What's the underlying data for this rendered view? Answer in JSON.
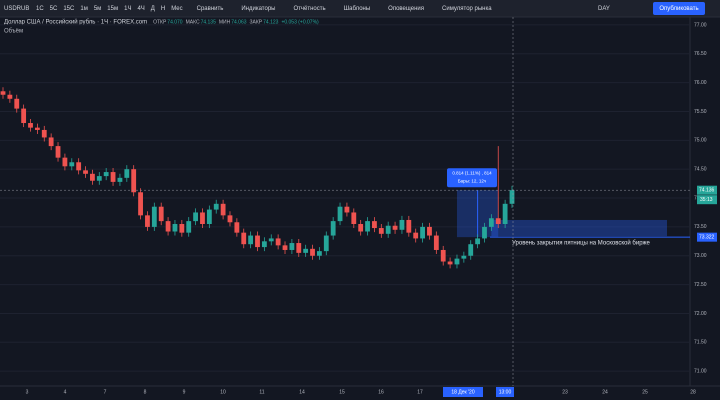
{
  "toolbar": {
    "symbol": "USDRUB",
    "intervals": [
      "1С",
      "5С",
      "15С",
      "1м",
      "5м",
      "15м",
      "1Ч",
      "4Ч",
      "Д",
      "Н",
      "Мес"
    ],
    "buttons": [
      "Сравнить",
      "Индикаторы",
      "Отчётность",
      "Шаблоны",
      "Оповещения",
      "Симулятор рынка"
    ],
    "chart_mode": "DAY",
    "publish": "Опубликовать"
  },
  "legend": {
    "title": "Доллар США / Российский рубль · 1Ч · FOREX.com",
    "ohlc": [
      {
        "label": "ОТКР",
        "value": "74.070"
      },
      {
        "label": "МАКС",
        "value": "74.135"
      },
      {
        "label": "МИН",
        "value": "74.063"
      },
      {
        "label": "ЗАКР",
        "value": "74.123"
      }
    ],
    "change": "+0.053 (+0.07%)",
    "volume": "Объём"
  },
  "chart_data": {
    "type": "candlestick",
    "up_color": "#26a69a",
    "down_color": "#ef5350",
    "open": [
      75.85,
      75.79,
      75.72,
      75.55,
      75.3,
      75.22,
      75.18,
      75.05,
      74.9,
      74.7,
      74.55,
      74.62,
      74.48,
      74.42,
      74.3,
      74.38,
      74.45,
      74.28,
      74.35,
      74.5,
      74.1,
      73.7,
      73.5,
      73.85,
      73.6,
      73.42,
      73.55,
      73.4,
      73.6,
      73.75,
      73.55,
      73.8,
      73.9,
      73.7,
      73.58,
      73.4,
      73.2,
      73.35,
      73.15,
      73.25,
      73.3,
      73.18,
      73.1,
      73.22,
      73.05,
      73.12,
      73.0,
      73.08,
      73.35,
      73.6,
      73.85,
      73.75,
      73.55,
      73.42,
      73.6,
      73.48,
      73.38,
      73.52,
      73.45,
      73.62,
      73.4,
      73.3,
      73.5,
      73.35,
      73.1,
      72.9,
      72.85,
      72.95,
      73.0,
      73.2,
      73.3,
      73.5,
      73.65,
      73.55,
      73.9
    ],
    "high": [
      75.92,
      75.86,
      75.79,
      75.62,
      75.37,
      75.29,
      75.25,
      75.12,
      74.97,
      74.77,
      74.69,
      74.69,
      74.55,
      74.49,
      74.45,
      74.52,
      74.52,
      74.42,
      74.57,
      74.57,
      74.17,
      73.77,
      73.92,
      73.92,
      73.67,
      73.62,
      73.62,
      73.67,
      73.82,
      73.82,
      73.87,
      73.97,
      73.97,
      73.77,
      73.65,
      73.47,
      73.42,
      73.42,
      73.32,
      73.37,
      73.37,
      73.25,
      73.29,
      73.29,
      73.19,
      73.19,
      73.15,
      73.42,
      73.67,
      73.92,
      73.92,
      73.82,
      73.62,
      73.67,
      73.67,
      73.55,
      73.59,
      73.59,
      73.69,
      73.69,
      73.47,
      73.57,
      73.57,
      73.42,
      73.17,
      72.97,
      73.02,
      73.07,
      73.27,
      73.37,
      73.57,
      73.72,
      74.9,
      73.97,
      74.21
    ],
    "low": [
      75.72,
      75.65,
      75.48,
      75.23,
      75.15,
      75.11,
      74.98,
      74.83,
      74.63,
      74.48,
      74.48,
      74.41,
      74.35,
      74.23,
      74.23,
      74.31,
      74.21,
      74.21,
      74.28,
      74.03,
      73.63,
      73.43,
      73.43,
      73.53,
      73.35,
      73.35,
      73.33,
      73.33,
      73.53,
      73.48,
      73.48,
      73.73,
      73.63,
      73.51,
      73.33,
      73.13,
      73.13,
      73.08,
      73.08,
      73.18,
      73.11,
      73.03,
      73.03,
      72.98,
      72.98,
      72.93,
      72.93,
      73.01,
      73.28,
      73.53,
      73.68,
      73.48,
      73.35,
      73.35,
      73.41,
      73.31,
      73.31,
      73.38,
      73.38,
      73.33,
      73.23,
      73.23,
      73.28,
      73.03,
      72.83,
      72.78,
      72.78,
      72.88,
      72.93,
      73.13,
      73.23,
      73.43,
      73.48,
      73.48,
      73.83
    ],
    "close": [
      75.79,
      75.72,
      75.55,
      75.3,
      75.22,
      75.18,
      75.05,
      74.9,
      74.7,
      74.55,
      74.62,
      74.48,
      74.42,
      74.3,
      74.38,
      74.45,
      74.28,
      74.35,
      74.5,
      74.1,
      73.7,
      73.5,
      73.85,
      73.6,
      73.42,
      73.55,
      73.4,
      73.6,
      73.75,
      73.55,
      73.8,
      73.9,
      73.7,
      73.58,
      73.4,
      73.2,
      73.35,
      73.15,
      73.25,
      73.3,
      73.18,
      73.1,
      73.22,
      73.05,
      73.12,
      73.0,
      73.08,
      73.35,
      73.6,
      73.85,
      73.75,
      73.55,
      73.42,
      73.6,
      73.48,
      73.38,
      73.52,
      73.45,
      73.62,
      73.4,
      73.3,
      73.5,
      73.35,
      73.1,
      72.9,
      72.85,
      72.95,
      73.0,
      73.2,
      73.3,
      73.5,
      73.65,
      73.55,
      73.9,
      74.136
    ],
    "ylim": [
      70.76,
      77.12
    ],
    "yticks": [
      {
        "value": 71,
        "label": "71.00"
      },
      {
        "value": 71.5,
        "label": "71.50"
      },
      {
        "value": 72,
        "label": "72.00"
      },
      {
        "value": 72.5,
        "label": "72.50"
      },
      {
        "value": 73,
        "label": "73.00"
      },
      {
        "value": 73.5,
        "label": "73.50"
      },
      {
        "value": 74,
        "label": "74.00"
      },
      {
        "value": 74.5,
        "label": "74.50"
      },
      {
        "value": 75,
        "label": "75.00"
      },
      {
        "value": 75.5,
        "label": "75.50"
      },
      {
        "value": 76,
        "label": "76.00"
      },
      {
        "value": 76.5,
        "label": "76.50"
      },
      {
        "value": 77,
        "label": "77.00"
      }
    ],
    "xtick_labels": [
      "3",
      "4",
      "7",
      "8",
      "9",
      "10",
      "11",
      "14",
      "15",
      "16",
      "17",
      "23",
      "24",
      "25",
      "28"
    ],
    "crosshair_labels": [
      "18 Дек '20",
      "13:00"
    ],
    "current_price": 74.136,
    "countdown": "35:13",
    "level": 73.322,
    "level_text": "Уровень закрытия пятницы на Московской бирже",
    "zone": [
      73.34,
      73.62
    ],
    "measure": {
      "from": 73.322,
      "to": 74.136,
      "label": "0.814 (1.11%) , 814",
      "bars": "Бары: 12, 12ч"
    }
  }
}
